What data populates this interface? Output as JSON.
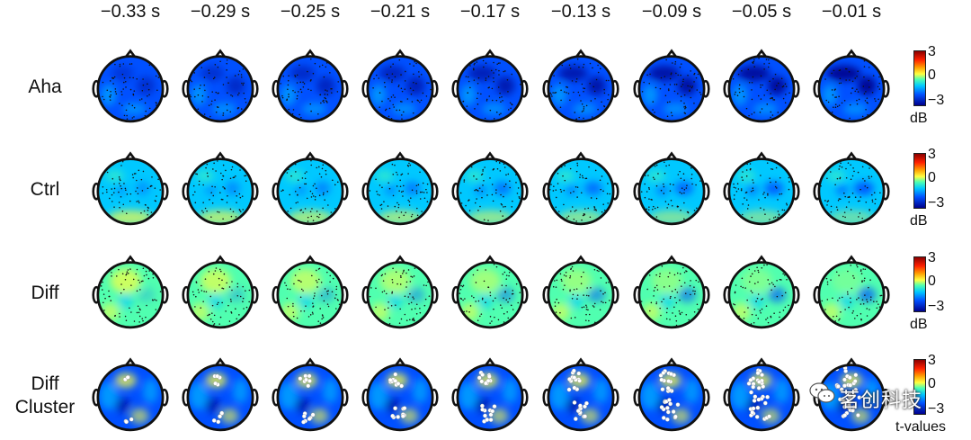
{
  "time_labels": [
    "−0.33 s",
    "−0.29 s",
    "−0.25 s",
    "−0.21 s",
    "−0.17 s",
    "−0.13 s",
    "−0.09 s",
    "−0.05 s",
    "−0.01 s"
  ],
  "rows": [
    {
      "label": "Aha",
      "unit": "dB",
      "ticks": [
        "3",
        "0",
        "−3"
      ]
    },
    {
      "label": "Ctrl",
      "unit": "dB",
      "ticks": [
        "3",
        "0",
        "−3"
      ]
    },
    {
      "label": "Diff",
      "unit": "dB",
      "ticks": [
        "3",
        "0",
        "−3"
      ]
    },
    {
      "label": "Diff\nCluster",
      "unit": "t-values",
      "ticks": [
        "3",
        "0",
        "−3"
      ]
    }
  ],
  "colormap": {
    "colors": [
      "#00008b",
      "#0050ff",
      "#00c8ff",
      "#50ffb0",
      "#ffff40",
      "#ffa000",
      "#ff2000",
      "#8b0000"
    ],
    "range": [
      -3,
      3
    ]
  },
  "watermark": "茗创科技",
  "watermark_icon": "wechat-icon"
}
